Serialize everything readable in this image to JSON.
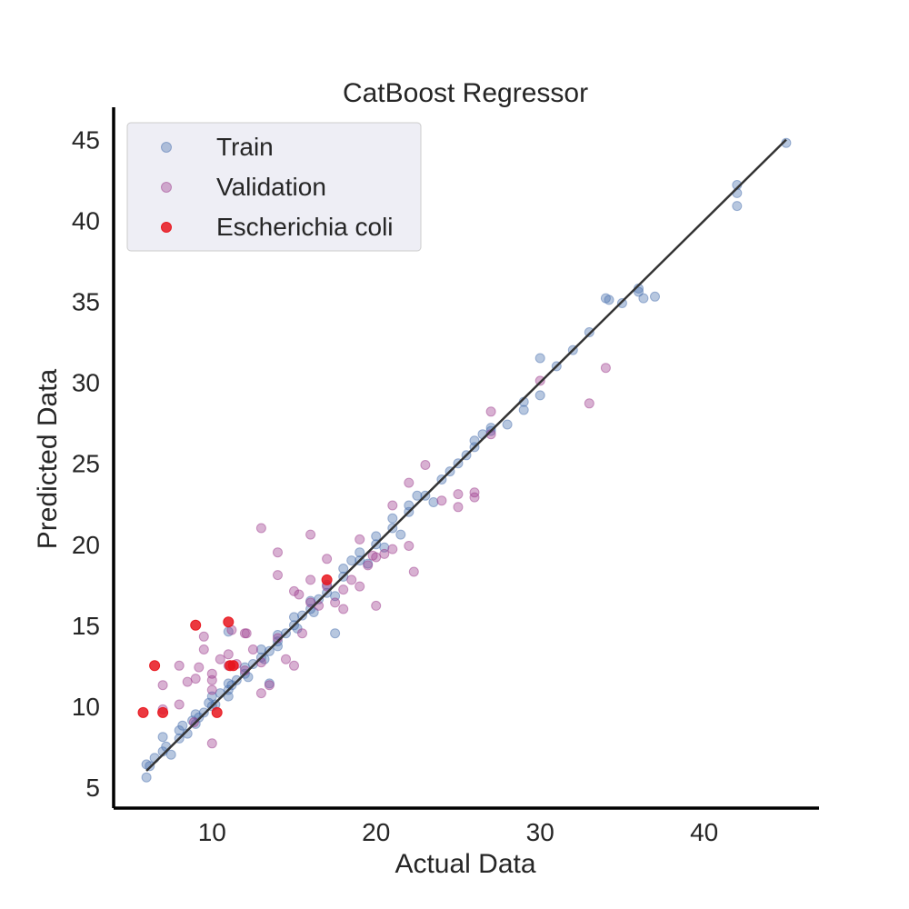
{
  "chart_data": {
    "type": "scatter",
    "title": "CatBoost Regressor",
    "xlabel": "Actual Data",
    "ylabel": "Predicted Data",
    "xlim": [
      4,
      47
    ],
    "ylim": [
      3.7,
      47
    ],
    "xticks": [
      10,
      20,
      30,
      40
    ],
    "yticks": [
      5,
      10,
      15,
      20,
      25,
      30,
      35,
      40,
      45
    ],
    "grid": false,
    "legend": "upper-left",
    "fit_line": {
      "x": [
        6,
        45
      ],
      "y": [
        6,
        45
      ],
      "color": "#333333"
    },
    "series": [
      {
        "name": "Train",
        "color": "#4c72b0",
        "alpha": 0.4,
        "x": [
          6,
          6,
          6.2,
          6.5,
          7,
          7,
          7.2,
          7.5,
          8,
          8,
          8.2,
          8.5,
          8.8,
          9,
          9,
          9.2,
          9.5,
          9.8,
          10,
          10,
          10.2,
          10.5,
          11,
          11,
          11,
          11.2,
          11.5,
          12,
          12,
          12.2,
          12.5,
          13,
          13,
          13.2,
          13.5,
          14,
          14,
          14,
          14.5,
          15,
          15,
          15.2,
          15.5,
          16,
          16,
          16.2,
          16.5,
          17,
          17,
          17.5,
          18,
          18,
          18.5,
          19,
          19,
          19.5,
          20,
          20,
          20.5,
          21,
          21,
          21.5,
          22,
          22,
          22.5,
          23,
          23.5,
          24,
          24.5,
          25,
          25.5,
          26,
          26,
          26.5,
          27,
          27,
          28,
          29,
          29,
          30,
          30,
          31,
          32,
          33,
          34,
          34.2,
          35,
          36,
          36,
          36.3,
          37,
          42,
          42,
          42,
          45,
          11,
          17.5,
          13.5
        ],
        "y": [
          5.6,
          6.4,
          6.3,
          6.8,
          7.2,
          8.1,
          7.5,
          7.0,
          8.0,
          8.5,
          8.8,
          8.3,
          9.1,
          9.5,
          8.9,
          9.3,
          9.6,
          10.2,
          10.0,
          10.6,
          10.1,
          10.8,
          11.0,
          11.4,
          10.6,
          11.3,
          11.6,
          12.0,
          12.4,
          11.8,
          12.6,
          13.0,
          13.5,
          12.9,
          13.4,
          14.0,
          14.4,
          13.7,
          14.5,
          15.0,
          15.5,
          14.8,
          15.6,
          16.0,
          16.5,
          15.8,
          16.6,
          17.0,
          17.5,
          16.8,
          18.0,
          18.5,
          19.0,
          19.0,
          19.5,
          18.8,
          20.0,
          20.5,
          19.8,
          21.0,
          21.6,
          20.6,
          22.0,
          22.4,
          23.0,
          23.0,
          22.6,
          24.0,
          24.5,
          25.0,
          25.5,
          26.0,
          26.4,
          26.8,
          27.0,
          27.2,
          27.4,
          28.8,
          28.3,
          29.2,
          31.5,
          31.0,
          32.0,
          33.1,
          35.2,
          35.1,
          34.9,
          35.6,
          35.8,
          35.2,
          35.3,
          41.7,
          42.2,
          40.9,
          44.8,
          14.6,
          14.5,
          11.4
        ]
      },
      {
        "name": "Validation",
        "color": "#9e3d8e",
        "alpha": 0.4,
        "x": [
          7,
          7,
          8,
          8,
          8.5,
          9,
          9.2,
          9.5,
          10,
          10,
          10,
          10.5,
          11,
          11,
          11.5,
          12,
          12,
          12.5,
          13,
          13,
          13.5,
          14,
          14,
          14.5,
          15,
          15,
          15.5,
          16,
          16,
          16.5,
          17,
          17,
          17.5,
          18,
          18,
          18.5,
          19,
          19,
          19.5,
          20,
          20,
          20.5,
          21,
          21,
          22,
          22,
          22.3,
          23,
          24,
          25,
          25,
          26,
          26,
          27,
          27,
          30,
          33,
          34,
          13,
          16,
          14,
          10,
          9.5,
          11.2,
          12.1,
          15.3,
          8.9,
          19.8
        ],
        "y": [
          11.3,
          9.8,
          12.5,
          10.1,
          11.5,
          11.7,
          12.4,
          14.3,
          12.0,
          11.6,
          7.7,
          12.9,
          13.2,
          12.5,
          12.6,
          14.5,
          12.2,
          13.5,
          12.7,
          10.8,
          11.3,
          19.5,
          14.2,
          12.9,
          17.1,
          12.5,
          14.5,
          20.6,
          16.4,
          16.2,
          19.1,
          17.4,
          16.4,
          17.2,
          16.0,
          17.8,
          20.3,
          17.4,
          18.7,
          16.2,
          19.2,
          19.4,
          22.4,
          19.7,
          23.8,
          19.9,
          18.3,
          24.9,
          22.7,
          23.1,
          22.3,
          23.2,
          22.9,
          26.8,
          28.2,
          30.1,
          28.7,
          30.9,
          21.0,
          17.8,
          18.1,
          11.0,
          13.5,
          14.7,
          14.5,
          16.9,
          9.0,
          19.3
        ]
      },
      {
        "name": "Escherichia coli",
        "color": "#e8151d",
        "alpha": 0.85,
        "x": [
          5.8,
          6.5,
          7.0,
          9.0,
          10.3,
          11.0,
          11.1,
          11.3,
          17.0
        ],
        "y": [
          9.6,
          12.5,
          9.6,
          15.0,
          9.6,
          15.2,
          12.5,
          12.5,
          17.8
        ]
      }
    ]
  }
}
